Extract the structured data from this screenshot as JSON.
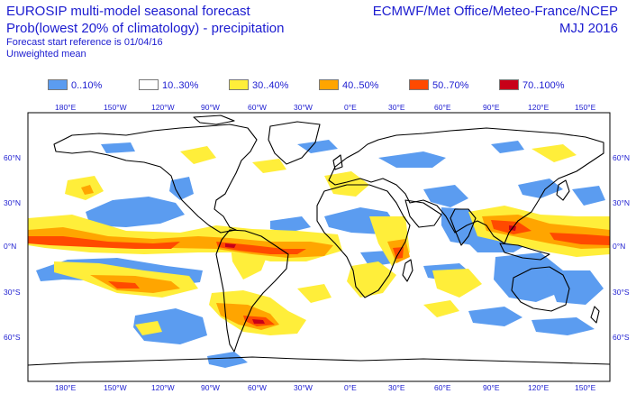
{
  "header": {
    "title_line1": "EUROSIP multi-model seasonal forecast",
    "title_line2": "Prob(lowest 20% of climatology) - precipitation",
    "subtitle_line1": "Forecast start reference is 01/04/16",
    "subtitle_line2": "Unweighted mean",
    "centres": "ECMWF/Met Office/Meteo-France/NCEP",
    "season": "MJJ 2016"
  },
  "legend": [
    {
      "label": "0..10%",
      "color": "#5b9cf0"
    },
    {
      "label": "10..30%",
      "color": "#ffffff"
    },
    {
      "label": "30..40%",
      "color": "#ffee3a"
    },
    {
      "label": "40..50%",
      "color": "#ffa500"
    },
    {
      "label": "50..70%",
      "color": "#ff4a00"
    },
    {
      "label": "70..100%",
      "color": "#c80018"
    }
  ],
  "map": {
    "lon_labels": [
      "180°E",
      "150°W",
      "120°W",
      "90°W",
      "60°W",
      "30°W",
      "0°E",
      "30°E",
      "60°E",
      "90°E",
      "120°E",
      "150°E"
    ],
    "lat_labels": [
      "60°N",
      "30°N",
      "0°N",
      "30°S",
      "60°S"
    ]
  }
}
